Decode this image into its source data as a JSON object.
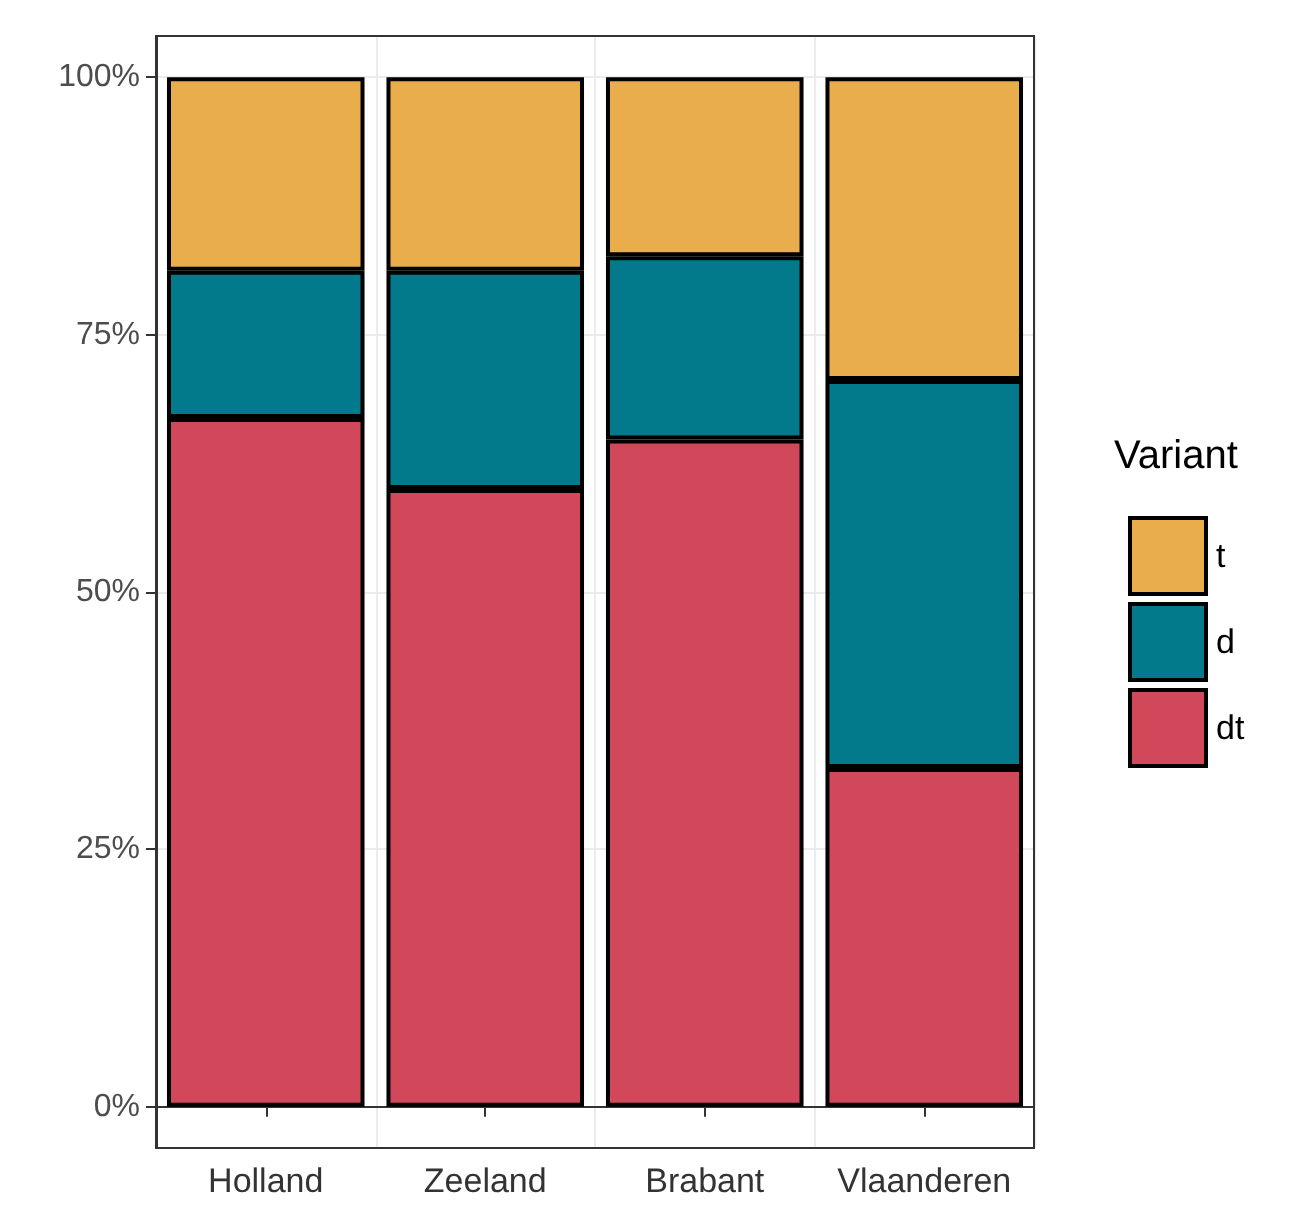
{
  "chart_data": {
    "type": "bar",
    "stacked": true,
    "legend_title": "Variant",
    "legend": "right",
    "categories": [
      "Holland",
      "Zeeland",
      "Brabant",
      "Vlaanderen"
    ],
    "series": [
      {
        "name": "dt",
        "color": "#d1485a",
        "values": [
          66.9,
          60.0,
          64.8,
          32.9
        ]
      },
      {
        "name": "d",
        "color": "#027a8c",
        "values": [
          14.3,
          21.2,
          17.8,
          37.7
        ]
      },
      {
        "name": "t",
        "color": "#e9ad4b",
        "values": [
          18.8,
          18.8,
          17.4,
          29.4
        ]
      }
    ],
    "ylim": [
      -4,
      104
    ],
    "yticks": [
      {
        "value": 0,
        "label": "0%"
      },
      {
        "value": 25,
        "label": "25%"
      },
      {
        "value": 50,
        "label": "50%"
      },
      {
        "value": 75,
        "label": "75%"
      },
      {
        "value": 100,
        "label": "100%"
      }
    ],
    "grid": true
  }
}
